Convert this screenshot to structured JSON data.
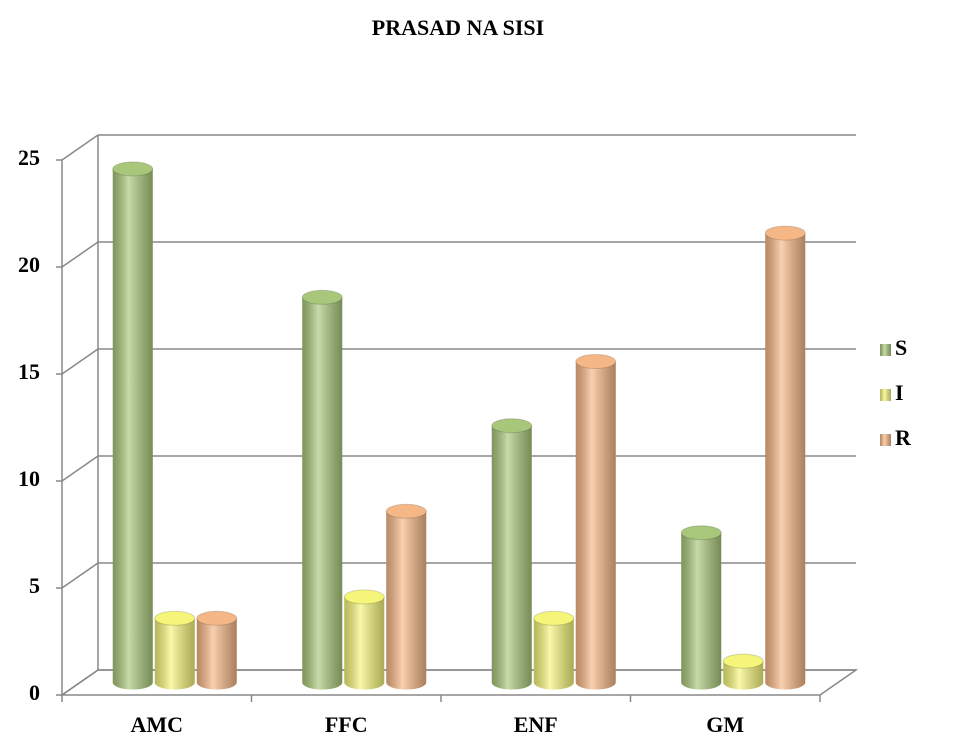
{
  "chart_data": {
    "type": "bar3d",
    "title": "PRASAD NA SISI",
    "categories": [
      "AMC",
      "FFC",
      "ENF",
      "GM"
    ],
    "series": [
      {
        "name": "S",
        "color": "#a9c77a",
        "values": [
          24,
          18,
          12,
          7
        ]
      },
      {
        "name": "I",
        "color": "#f5f57a",
        "values": [
          3,
          4,
          3,
          1
        ]
      },
      {
        "name": "R",
        "color": "#f6b786",
        "values": [
          3,
          8,
          15,
          21
        ]
      }
    ],
    "ylim": [
      0,
      25
    ],
    "yticks": [
      0,
      5,
      10,
      15,
      20,
      25
    ],
    "grid": true,
    "legend": "right"
  }
}
